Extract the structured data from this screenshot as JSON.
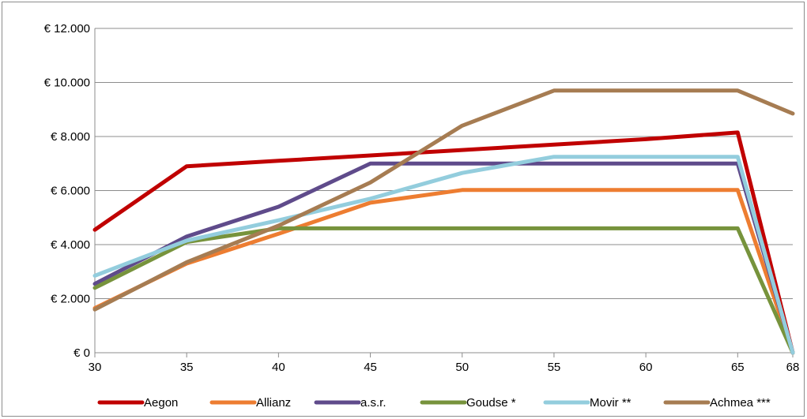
{
  "chart_data": {
    "type": "line",
    "categories": [
      "30",
      "35",
      "40",
      "45",
      "50",
      "55",
      "60",
      "65",
      "68"
    ],
    "y_ticks": [
      "€ 0",
      "€ 2.000",
      "€ 4.000",
      "€ 6.000",
      "€ 8.000",
      "€ 10.000",
      "€ 12.000"
    ],
    "ylim": [
      0,
      12000
    ],
    "grid": true,
    "legend_position": "bottom",
    "series": [
      {
        "name": "Aegon",
        "color": "#c00000",
        "values": [
          4550,
          6900,
          7100,
          7300,
          7500,
          7700,
          7900,
          8150,
          0
        ]
      },
      {
        "name": "Allianz",
        "color": "#ed7d31",
        "values": [
          1650,
          3300,
          4400,
          5550,
          6020,
          6020,
          6020,
          6020,
          0
        ]
      },
      {
        "name": "a.s.r.",
        "color": "#5f4b8b",
        "values": [
          2550,
          4300,
          5400,
          7000,
          7000,
          7000,
          7000,
          7000,
          0
        ]
      },
      {
        "name": "Goudse *",
        "color": "#77933c",
        "values": [
          2400,
          4100,
          4600,
          4600,
          4600,
          4600,
          4600,
          4600,
          0
        ]
      },
      {
        "name": "Movir **",
        "color": "#93cddd",
        "values": [
          2850,
          4150,
          4900,
          5700,
          6650,
          7250,
          7250,
          7250,
          0
        ]
      },
      {
        "name": "Achmea ***",
        "color": "#a67c52",
        "values": [
          1600,
          3350,
          4700,
          6300,
          8400,
          9700,
          9700,
          9700,
          8850
        ]
      }
    ]
  }
}
